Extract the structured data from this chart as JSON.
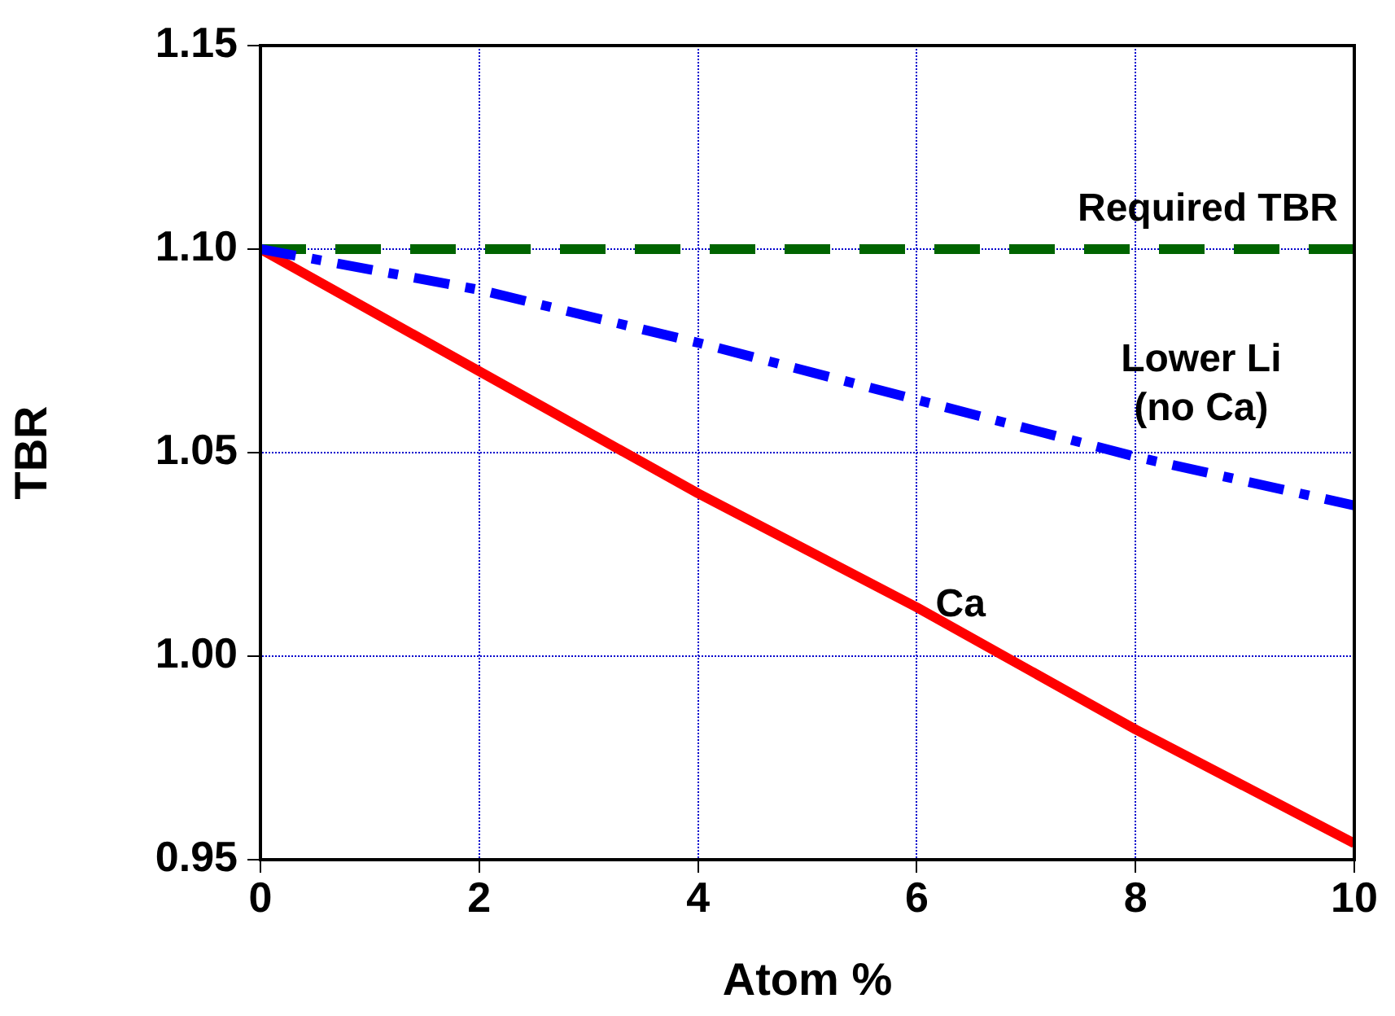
{
  "chart_data": {
    "type": "line",
    "xlabel": "Atom %",
    "ylabel": "TBR",
    "x": [
      0,
      2,
      4,
      6,
      8,
      10
    ],
    "series": [
      {
        "name": "Lower Li (no Ca)",
        "color": "#0000ff",
        "line_style": "dashdot",
        "values": [
          1.1,
          1.09,
          1.077,
          1.063,
          1.049,
          1.037
        ]
      },
      {
        "name": "Ca",
        "color": "#ff0000",
        "line_style": "solid",
        "values": [
          1.1,
          1.07,
          1.04,
          1.012,
          0.982,
          0.954
        ]
      }
    ],
    "xlim": [
      0,
      10
    ],
    "xticks": [
      0,
      2,
      4,
      6,
      8,
      10
    ],
    "ylim": [
      0.95,
      1.15
    ],
    "yticks": [
      {
        "value": 0.95,
        "label": "0.95"
      },
      {
        "value": 1.0,
        "label": "1.00"
      },
      {
        "value": 1.05,
        "label": "1.05"
      },
      {
        "value": 1.1,
        "label": "1.10"
      },
      {
        "value": 1.15,
        "label": "1.15"
      }
    ],
    "ref_lines": [
      {
        "axis": "y",
        "value": 1.1,
        "label": "Required TBR",
        "color": "#006400",
        "line_style": "dashed"
      }
    ],
    "grid": true,
    "legend": false,
    "marker": "none"
  }
}
